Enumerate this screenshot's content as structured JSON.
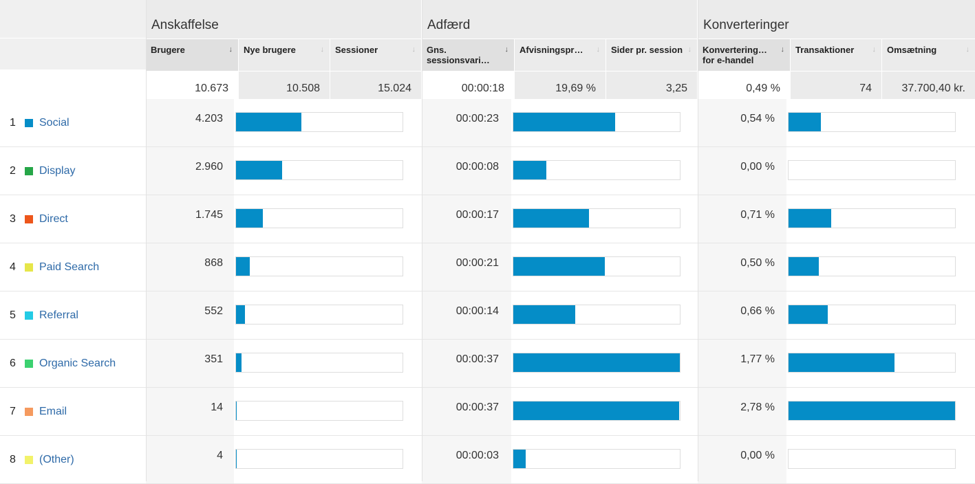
{
  "groups": {
    "acquisition": "Anskaffelse",
    "behavior": "Adfærd",
    "conversions": "Konverteringer"
  },
  "columns": {
    "users": "Brugere",
    "new_users": "Nye brugere",
    "sessions": "Sessioner",
    "avg_session": "Gns. sessionsvari…",
    "bounce": "Afvisningspr…",
    "pages_per_session": "Sider pr. session",
    "ecom_conv": "Konvertering… for e-handel",
    "transactions": "Transaktioner",
    "revenue": "Omsætning"
  },
  "totals": {
    "users": "10.673",
    "new_users": "10.508",
    "sessions": "15.024",
    "avg_session": "00:00:18",
    "bounce": "19,69 %",
    "pages_per_session": "3,25",
    "ecom_conv": "0,49 %",
    "transactions": "74",
    "revenue": "37.700,40 kr."
  },
  "rows": [
    {
      "num": "1",
      "channel": "Social",
      "color": "#058dc7",
      "users": "4.203",
      "users_frac": 0.394,
      "avg_session": "00:00:23",
      "avg_frac": 0.61,
      "conv": "0,54 %",
      "conv_frac": 0.194
    },
    {
      "num": "2",
      "channel": "Display",
      "color": "#26a648",
      "users": "2.960",
      "users_frac": 0.277,
      "avg_session": "00:00:08",
      "avg_frac": 0.2,
      "conv": "0,00 %",
      "conv_frac": 0
    },
    {
      "num": "3",
      "channel": "Direct",
      "color": "#ed561b",
      "users": "1.745",
      "users_frac": 0.163,
      "avg_session": "00:00:17",
      "avg_frac": 0.455,
      "conv": "0,71 %",
      "conv_frac": 0.255
    },
    {
      "num": "4",
      "channel": "Paid Search",
      "color": "#e6e64a",
      "users": "868",
      "users_frac": 0.081,
      "avg_session": "00:00:21",
      "avg_frac": 0.55,
      "conv": "0,50 %",
      "conv_frac": 0.18
    },
    {
      "num": "5",
      "channel": "Referral",
      "color": "#24cbe5",
      "users": "552",
      "users_frac": 0.052,
      "avg_session": "00:00:14",
      "avg_frac": 0.37,
      "conv": "0,66 %",
      "conv_frac": 0.237
    },
    {
      "num": "6",
      "channel": "Organic Search",
      "color": "#3cd170",
      "users": "351",
      "users_frac": 0.033,
      "avg_session": "00:00:37",
      "avg_frac": 1.0,
      "conv": "1,77 %",
      "conv_frac": 0.637
    },
    {
      "num": "7",
      "channel": "Email",
      "color": "#f59a5f",
      "users": "14",
      "users_frac": 0.003,
      "avg_session": "00:00:37",
      "avg_frac": 0.995,
      "conv": "2,78 %",
      "conv_frac": 1.0
    },
    {
      "num": "8",
      "channel": "(Other)",
      "color": "#f2f26a",
      "users": "4",
      "users_frac": 0.002,
      "avg_session": "00:00:03",
      "avg_frac": 0.075,
      "conv": "0,00 %",
      "conv_frac": 0
    }
  ]
}
